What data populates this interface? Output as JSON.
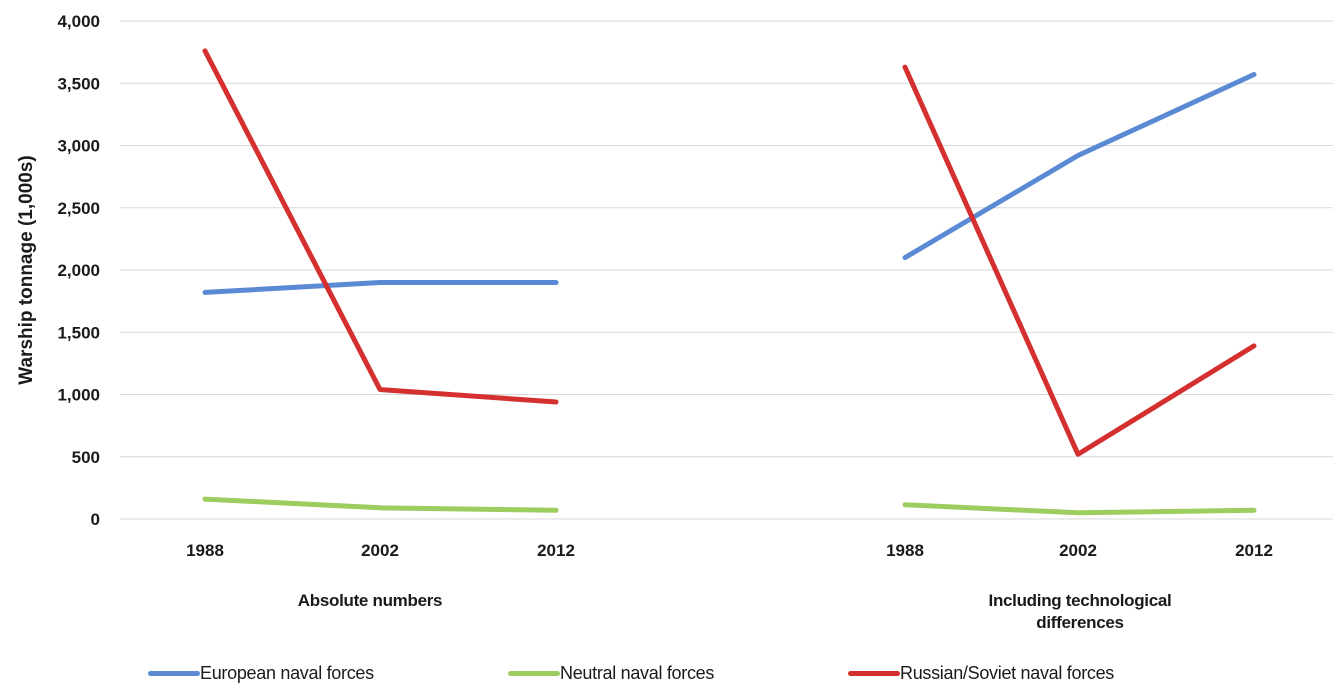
{
  "chart_data": {
    "type": "line",
    "ylabel": "Warship tonnage (1,000s)",
    "ylim": [
      0,
      4000
    ],
    "yticks": [
      "0",
      "500",
      "1,000",
      "1,500",
      "2,000",
      "2,500",
      "3,000",
      "3,500",
      "4,000"
    ],
    "grid": true,
    "legend_position": "bottom",
    "panels": [
      {
        "label": "Absolute numbers",
        "categories": [
          "1988",
          "2002",
          "2012"
        ],
        "series": [
          {
            "name": "European naval forces",
            "color": "#5b8ad4",
            "values": [
              1820,
              1900,
              1900
            ]
          },
          {
            "name": "Neutral naval forces",
            "color": "#9dcc5f",
            "values": [
              160,
              90,
              70
            ]
          },
          {
            "name": "Russian/Soviet naval forces",
            "color": "#d3302f",
            "values": [
              3760,
              1040,
              940
            ]
          }
        ]
      },
      {
        "label": "Including technological differences",
        "categories": [
          "1988",
          "2002",
          "2012"
        ],
        "series": [
          {
            "name": "European naval forces",
            "color": "#5b8ad4",
            "values": [
              2100,
              2920,
              3570
            ]
          },
          {
            "name": "Neutral naval forces",
            "color": "#9dcc5f",
            "values": [
              115,
              50,
              70
            ]
          },
          {
            "name": "Russian/Soviet naval forces",
            "color": "#d3302f",
            "values": [
              3630,
              520,
              1390
            ]
          }
        ]
      }
    ]
  },
  "panel_labels": {
    "left": "Absolute numbers",
    "right_line1": "Including technological",
    "right_line2": "differences"
  },
  "legend": {
    "european": {
      "label": "European naval forces",
      "color": "#5b8ad4"
    },
    "neutral": {
      "label": "Neutral naval forces",
      "color": "#9dcc5f"
    },
    "russian": {
      "label": "Russian/Soviet naval forces",
      "color": "#d3302f"
    }
  }
}
